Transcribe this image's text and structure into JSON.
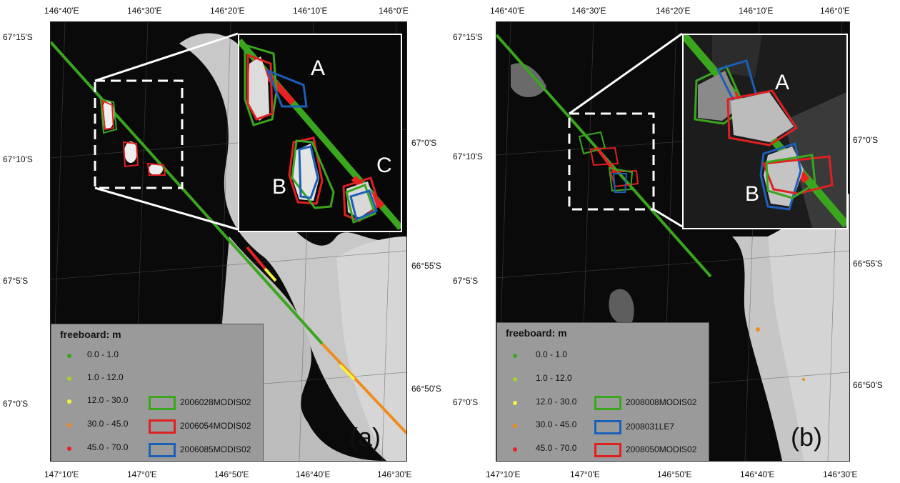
{
  "panel_a": {
    "top_lon_labels": [
      "146°40'E",
      "146°30'E",
      "146°20'E",
      "146°10'E",
      "146°0'E"
    ],
    "bottom_lon_labels": [
      "147°10'E",
      "147°0'E",
      "146°50'E",
      "146°40'E",
      "146°30'E"
    ],
    "left_lat_labels": [
      "67°15'S",
      "67°10'S",
      "67°5'S",
      "67°0'S"
    ],
    "right_lat_labels": [
      "67°0'S",
      "66°55'S",
      "66°50'S"
    ],
    "legend_title": "freeboard: m",
    "classes": [
      {
        "range": "0.0 - 1.0",
        "color": "#3aa61e"
      },
      {
        "range": "1.0 - 12.0",
        "color": "#a4d12b"
      },
      {
        "range": "12.0 - 30.0",
        "color": "#f4f23c"
      },
      {
        "range": "30.0 - 45.0",
        "color": "#f08c1c"
      },
      {
        "range": "45.0 - 70.0",
        "color": "#e82222"
      }
    ],
    "outlines": [
      {
        "name": "2006028MODIS02",
        "color": "#3aa61e"
      },
      {
        "name": "2006054MODIS02",
        "color": "#e02020"
      },
      {
        "name": "2006085MODIS02",
        "color": "#1c5fb8"
      }
    ],
    "panel_label": "(a)",
    "inset_letters": [
      "A",
      "B",
      "C"
    ]
  },
  "panel_b": {
    "top_lon_labels": [
      "146°40'E",
      "146°30'E",
      "146°20'E",
      "146°10'E",
      "146°0'E"
    ],
    "bottom_lon_labels": [
      "147°10'E",
      "147°0'E",
      "146°50'E",
      "146°40'E",
      "146°30'E"
    ],
    "left_lat_labels": [
      "67°15'S",
      "67°10'S",
      "67°5'S",
      "67°0'S"
    ],
    "right_lat_labels": [
      "67°0'S",
      "66°55'S",
      "66°50'S"
    ],
    "legend_title": "freeboard: m",
    "classes": [
      {
        "range": "0.0 - 1.0",
        "color": "#3aa61e"
      },
      {
        "range": "1.0 - 12.0",
        "color": "#a4d12b"
      },
      {
        "range": "12.0 - 30.0",
        "color": "#f4f23c"
      },
      {
        "range": "30.0 - 45.0",
        "color": "#f08c1c"
      },
      {
        "range": "45.0 - 70.0",
        "color": "#e82222"
      }
    ],
    "outlines": [
      {
        "name": "2008008MODIS02",
        "color": "#3aa61e"
      },
      {
        "name": "2008031LE7",
        "color": "#1c5fb8"
      },
      {
        "name": "2008050MODIS02",
        "color": "#e02020"
      }
    ],
    "panel_label": "(b)",
    "inset_letters": [
      "A",
      "B"
    ]
  }
}
